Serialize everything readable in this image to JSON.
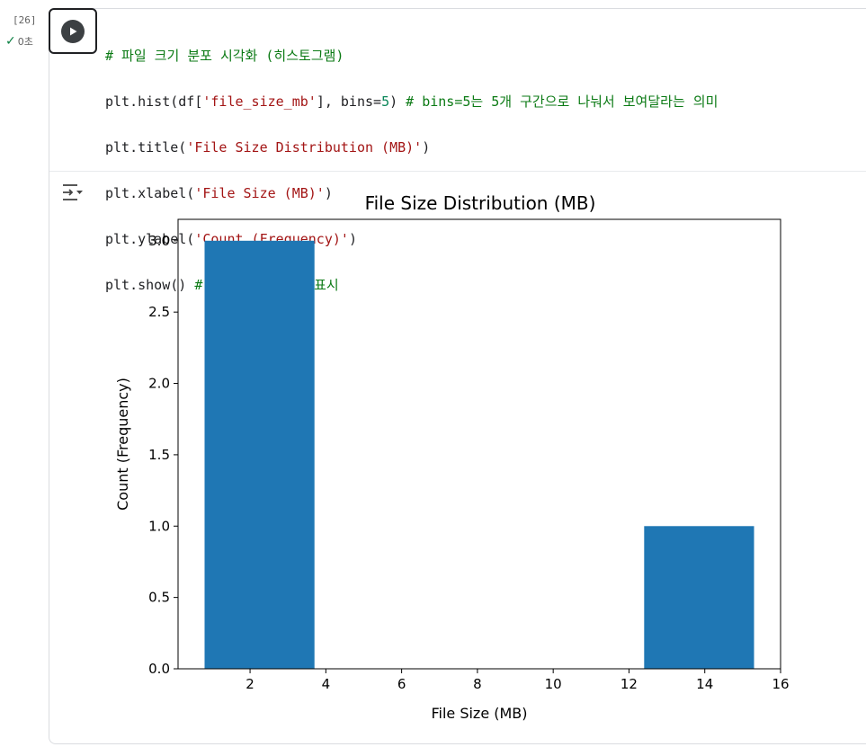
{
  "cell": {
    "execution_count": "[26]",
    "status": "0초",
    "code_lines": [
      {
        "comment": "# 파일 크기 분포 시각화 (히스토그램)"
      },
      {
        "p1": "plt.hist(df[",
        "s1": "'file_size_mb'",
        "p2": "], bins=",
        "n1": "5",
        "p3": ") ",
        "comment": "# bins=5는 5개 구간으로 나눠서 보여달라는 의미"
      },
      {
        "p1": "plt.title(",
        "s1": "'File Size Distribution (MB)'",
        "p2": ")"
      },
      {
        "p1": "plt.xlabel(",
        "s1": "'File Size (MB)'",
        "p2": ")"
      },
      {
        "p1": "plt.ylabel(",
        "s1": "'Count (Frequency)'",
        "p2": ")"
      },
      {
        "p1": "plt.show() ",
        "comment": "# 그래프를 화면에 표시"
      }
    ]
  },
  "icons": {
    "run": "play-icon",
    "output_toggle": "output-toggle-icon",
    "status": "check-icon"
  },
  "chart_data": {
    "type": "bar",
    "title": "File Size Distribution (MB)",
    "xlabel": "File Size (MB)",
    "ylabel": "Count (Frequency)",
    "xlim": [
      0.1,
      16
    ],
    "ylim": [
      0,
      3.15
    ],
    "xticks": [
      2,
      4,
      6,
      8,
      10,
      12,
      14,
      16
    ],
    "yticks": [
      0.0,
      0.5,
      1.0,
      1.5,
      2.0,
      2.5,
      3.0
    ],
    "ytick_labels": [
      "0.0",
      "0.5",
      "1.0",
      "1.5",
      "2.0",
      "2.5",
      "3.0"
    ],
    "bins": [
      {
        "x0": 0.8,
        "x1": 3.7,
        "count": 3
      },
      {
        "x0": 3.7,
        "x1": 6.6,
        "count": 0
      },
      {
        "x0": 6.6,
        "x1": 9.5,
        "count": 0
      },
      {
        "x0": 9.5,
        "x1": 12.4,
        "count": 0
      },
      {
        "x0": 12.4,
        "x1": 15.3,
        "count": 1
      }
    ],
    "bar_color": "#1f77b4",
    "grid": false
  }
}
